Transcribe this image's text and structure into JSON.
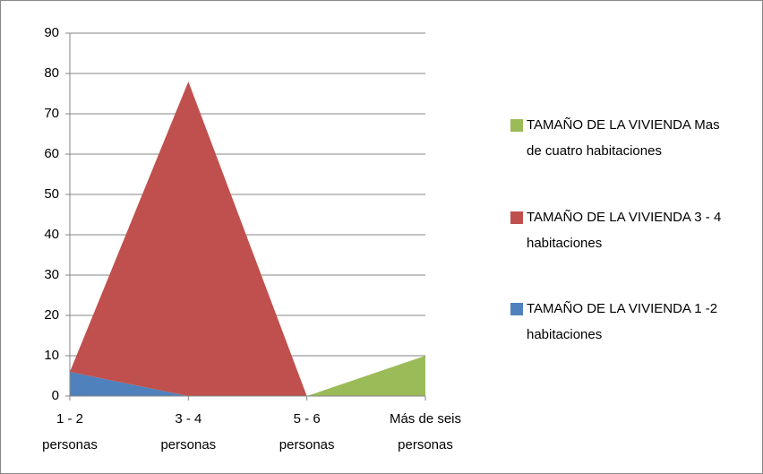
{
  "chart_data": {
    "type": "stacked_area",
    "categories": [
      "1 - 2 personas",
      "3 - 4 personas",
      "5 - 6 personas",
      "Más de seis personas"
    ],
    "series": [
      {
        "name": "TAMAÑO DE LA VIVIENDA 1 -2 habitaciones",
        "color": "#4f81bd",
        "values": [
          6,
          0,
          0,
          0
        ]
      },
      {
        "name": "TAMAÑO DE LA VIVIENDA 3 - 4 habitaciones",
        "color": "#c0504d",
        "values": [
          0,
          78,
          0,
          0
        ]
      },
      {
        "name": "TAMAÑO DE LA VIVIENDA Mas de cuatro habitaciones",
        "color": "#9bbb59",
        "values": [
          0,
          0,
          0,
          10
        ]
      }
    ],
    "ylim": [
      0,
      90
    ],
    "yticks": [
      0,
      10,
      20,
      30,
      40,
      50,
      60,
      70,
      80,
      90
    ],
    "grid": true,
    "legend": "right"
  }
}
